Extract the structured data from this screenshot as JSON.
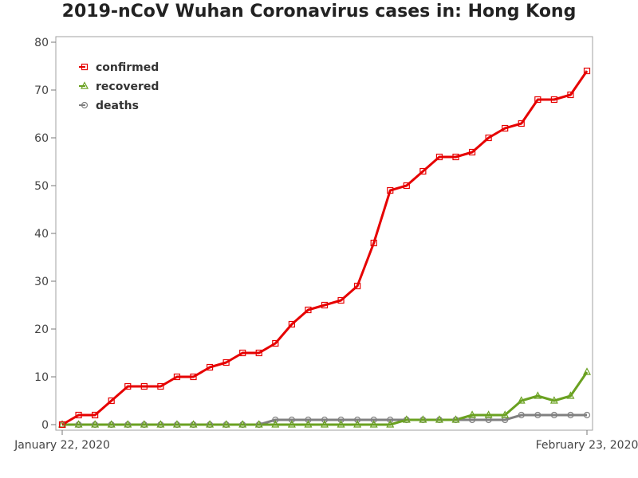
{
  "chart_data": {
    "type": "line",
    "title": "2019-nCoV Wuhan Coronavirus cases in: Hong Kong",
    "xlabel": "",
    "ylabel": "",
    "x_tick_labels": [
      "January 22, 2020",
      "February 23, 2020"
    ],
    "x_range": [
      "2020-01-22",
      "2020-02-23"
    ],
    "ylim": [
      0,
      80
    ],
    "y_ticks": [
      0,
      10,
      20,
      30,
      40,
      50,
      60,
      70,
      80
    ],
    "grid": false,
    "legend_position": "top-left",
    "x": [
      "2020-01-22",
      "2020-01-23",
      "2020-01-24",
      "2020-01-25",
      "2020-01-26",
      "2020-01-27",
      "2020-01-28",
      "2020-01-29",
      "2020-01-30",
      "2020-01-31",
      "2020-02-01",
      "2020-02-02",
      "2020-02-03",
      "2020-02-04",
      "2020-02-05",
      "2020-02-06",
      "2020-02-07",
      "2020-02-08",
      "2020-02-09",
      "2020-02-10",
      "2020-02-11",
      "2020-02-12",
      "2020-02-13",
      "2020-02-14",
      "2020-02-15",
      "2020-02-16",
      "2020-02-17",
      "2020-02-18",
      "2020-02-19",
      "2020-02-20",
      "2020-02-21",
      "2020-02-22",
      "2020-02-23"
    ],
    "series": [
      {
        "name": "confirmed",
        "color": "#e60000",
        "marker": "square",
        "values": [
          0,
          2,
          2,
          5,
          8,
          8,
          8,
          10,
          10,
          12,
          13,
          15,
          15,
          17,
          21,
          24,
          25,
          26,
          29,
          38,
          49,
          50,
          53,
          56,
          56,
          57,
          60,
          62,
          63,
          68,
          68,
          69,
          74
        ]
      },
      {
        "name": "recovered",
        "color": "#6aa121",
        "marker": "triangle",
        "values": [
          0,
          0,
          0,
          0,
          0,
          0,
          0,
          0,
          0,
          0,
          0,
          0,
          0,
          0,
          0,
          0,
          0,
          0,
          0,
          0,
          0,
          1,
          1,
          1,
          1,
          2,
          2,
          2,
          5,
          6,
          5,
          6,
          11
        ]
      },
      {
        "name": "deaths",
        "color": "#808080",
        "marker": "circle",
        "values": [
          0,
          0,
          0,
          0,
          0,
          0,
          0,
          0,
          0,
          0,
          0,
          0,
          0,
          1,
          1,
          1,
          1,
          1,
          1,
          1,
          1,
          1,
          1,
          1,
          1,
          1,
          1,
          1,
          2,
          2,
          2,
          2,
          2
        ]
      }
    ]
  }
}
